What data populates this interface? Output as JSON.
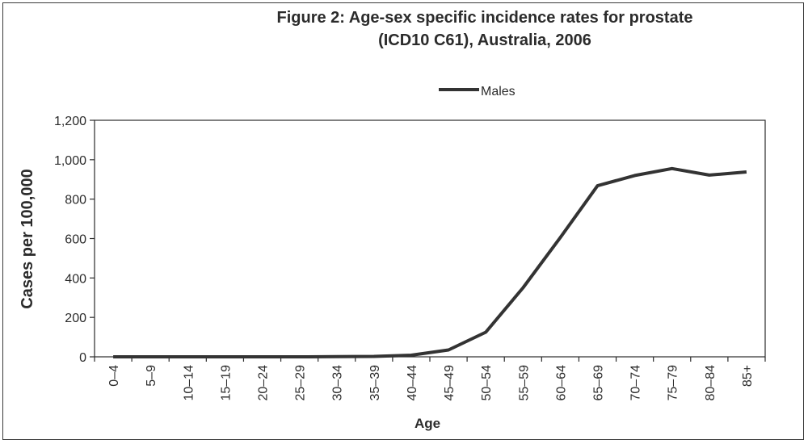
{
  "chart_data": {
    "type": "line",
    "title_line1": "Figure 2: Age-sex specific incidence rates for prostate",
    "title_line2": "(ICD10 C61), Australia, 2006",
    "xlabel": "Age",
    "ylabel": "Cases per 100,000",
    "ylim": [
      0,
      1200
    ],
    "yticks": [
      0,
      200,
      400,
      600,
      800,
      1000,
      1200
    ],
    "ytick_labels": [
      "0",
      "200",
      "400",
      "600",
      "800",
      "1,000",
      "1,200"
    ],
    "categories": [
      "0–4",
      "5–9",
      "10–14",
      "15–19",
      "20–24",
      "25–29",
      "30–34",
      "35–39",
      "40–44",
      "45–49",
      "50–54",
      "55–59",
      "60–64",
      "65–69",
      "70–74",
      "75–79",
      "80–84",
      "85+"
    ],
    "series": [
      {
        "name": "Males",
        "color": "#333333",
        "values": [
          0,
          0,
          0,
          0,
          0,
          0,
          1,
          2,
          8,
          35,
          125,
          350,
          605,
          868,
          920,
          955,
          922,
          938
        ]
      }
    ],
    "legend_position": "top-center"
  }
}
